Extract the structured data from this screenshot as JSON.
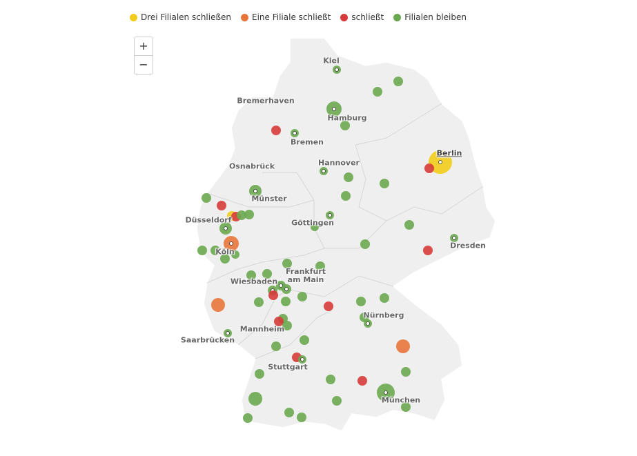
{
  "legend": [
    "Drei Filialen schließen",
    "Eine Filiale schließt",
    "schließt",
    "Filialen bleiben"
  ],
  "zoom": [
    "+",
    "−"
  ],
  "cities": [
    "Kiel",
    "Bremerhaven",
    "Hamburg",
    "Bremen",
    "Berlin",
    "Osnabrück",
    "Hannover",
    "Münster",
    "Düsseldorf",
    "Göttingen",
    "Dresden",
    "Köln",
    "Frankfurt am Main",
    "Wiesbaden",
    "Nürnberg",
    "Mannheim",
    "Saarbrücken",
    "Stuttgart",
    "München"
  ]
}
